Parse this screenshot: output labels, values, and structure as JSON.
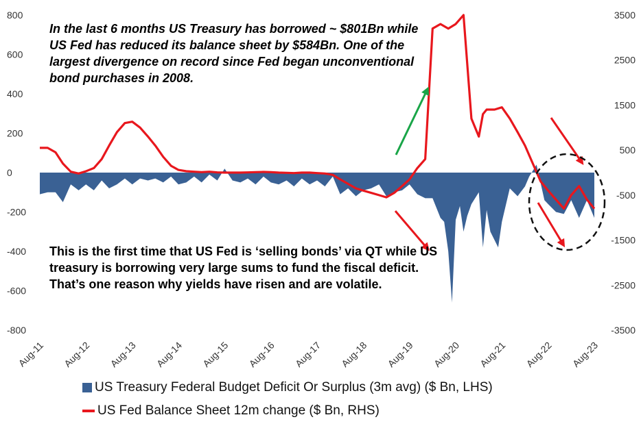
{
  "chart_data": {
    "type": "area+line",
    "annotations": [
      "In the last 6 months US Treasury has borrowed ~ $801Bn while US Fed has reduced its balance sheet by $584Bn. One of the largest divergence on record since Fed began unconventional bond purchases in 2008.",
      "This is the first time that US Fed is ‘selling bonds’ via QT while US treasury is borrowing very large sums to fund the fiscal deficit. That’s one reason why yields have risen and are volatile."
    ],
    "x_ticks": [
      "Aug-11",
      "Aug-12",
      "Aug-13",
      "Aug-14",
      "Aug-15",
      "Aug-16",
      "Aug-17",
      "Aug-18",
      "Aug-19",
      "Aug-20",
      "Aug-21",
      "Aug-22",
      "Aug-23"
    ],
    "x_range": [
      2011.58,
      2023.58
    ],
    "y_left": {
      "ticks": [
        "800",
        "600",
        "400",
        "200",
        "0",
        "-200",
        "-400",
        "-600",
        "-800"
      ],
      "range": [
        -800,
        800
      ]
    },
    "y_right": {
      "ticks": [
        "3500",
        "2500",
        "1500",
        "500",
        "-500",
        "-1500",
        "-2500",
        "-3500"
      ],
      "range": [
        -3500,
        3500
      ]
    },
    "legend": [
      "US Treasury Federal Budget Deficit Or Surplus (3m avg) ($ Bn, LHS)",
      "US Fed Balance Sheet 12m change ($ Bn, RHS)"
    ],
    "series": [
      {
        "name": "US Treasury Federal Budget Deficit Or Surplus (3m avg) ($ Bn, LHS)",
        "axis": "left",
        "color": "#3a6194",
        "x": [
          2011.58,
          2011.75,
          2011.92,
          2012.08,
          2012.25,
          2012.42,
          2012.58,
          2012.75,
          2012.92,
          2013.08,
          2013.25,
          2013.42,
          2013.58,
          2013.75,
          2013.92,
          2014.08,
          2014.25,
          2014.42,
          2014.58,
          2014.75,
          2014.92,
          2015.08,
          2015.25,
          2015.42,
          2015.58,
          2015.75,
          2015.92,
          2016.08,
          2016.25,
          2016.42,
          2016.58,
          2016.75,
          2016.92,
          2017.08,
          2017.25,
          2017.42,
          2017.58,
          2017.75,
          2017.92,
          2018.08,
          2018.25,
          2018.42,
          2018.58,
          2018.75,
          2018.92,
          2019.08,
          2019.25,
          2019.42,
          2019.58,
          2019.75,
          2019.92,
          2020.08,
          2020.25,
          2020.33,
          2020.42,
          2020.5,
          2020.58,
          2020.67,
          2020.75,
          2020.83,
          2020.92,
          2021.08,
          2021.17,
          2021.25,
          2021.33,
          2021.5,
          2021.58,
          2021.75,
          2021.92,
          2022.08,
          2022.17,
          2022.33,
          2022.5,
          2022.58,
          2022.75,
          2022.92,
          2023.08,
          2023.25,
          2023.42,
          2023.58
        ],
        "values": [
          -110,
          -100,
          -100,
          -150,
          -60,
          -90,
          -60,
          -90,
          -40,
          -80,
          -60,
          -30,
          -60,
          -30,
          -40,
          -30,
          -50,
          -20,
          -60,
          -50,
          -20,
          -50,
          -10,
          -40,
          20,
          -40,
          -50,
          -30,
          -60,
          -20,
          -50,
          -60,
          -40,
          -70,
          -30,
          -60,
          -40,
          -70,
          -20,
          -110,
          -80,
          -120,
          -90,
          -80,
          -60,
          -120,
          -100,
          -90,
          -60,
          -110,
          -130,
          -130,
          -230,
          -250,
          -400,
          -660,
          -240,
          -170,
          -300,
          -220,
          -160,
          -100,
          -380,
          -190,
          -300,
          -380,
          -250,
          -80,
          -120,
          -70,
          -20,
          40,
          -140,
          -160,
          -200,
          -210,
          -140,
          -230,
          -140,
          -230
        ]
      },
      {
        "name": "US Fed Balance Sheet 12m change ($ Bn, RHS)",
        "axis": "right",
        "color": "#e8171d",
        "x": [
          2011.58,
          2011.75,
          2011.92,
          2012.08,
          2012.25,
          2012.42,
          2012.58,
          2012.75,
          2012.92,
          2013.08,
          2013.25,
          2013.42,
          2013.58,
          2013.75,
          2013.92,
          2014.08,
          2014.25,
          2014.42,
          2014.58,
          2014.75,
          2014.92,
          2015.08,
          2015.25,
          2015.42,
          2015.58,
          2015.75,
          2015.92,
          2016.08,
          2016.25,
          2016.42,
          2016.58,
          2016.75,
          2016.92,
          2017.08,
          2017.25,
          2017.42,
          2017.58,
          2017.75,
          2017.92,
          2018.08,
          2018.25,
          2018.42,
          2018.58,
          2018.75,
          2018.92,
          2019.08,
          2019.25,
          2019.42,
          2019.58,
          2019.75,
          2019.92,
          2020.08,
          2020.25,
          2020.42,
          2020.58,
          2020.75,
          2020.92,
          2021.08,
          2021.17,
          2021.25,
          2021.42,
          2021.58,
          2021.75,
          2021.92,
          2022.08,
          2022.25,
          2022.42,
          2022.58,
          2022.75,
          2022.92,
          2023.08,
          2023.25,
          2023.42,
          2023.58
        ],
        "values": [
          550,
          550,
          450,
          200,
          20,
          -20,
          30,
          100,
          300,
          600,
          900,
          1100,
          1130,
          1000,
          800,
          600,
          350,
          150,
          60,
          30,
          20,
          10,
          20,
          5,
          0,
          0,
          0,
          5,
          10,
          15,
          10,
          0,
          -5,
          -10,
          0,
          0,
          -10,
          -20,
          -50,
          -150,
          -250,
          -350,
          -400,
          -450,
          -500,
          -550,
          -450,
          -300,
          -150,
          100,
          300,
          3200,
          3300,
          3200,
          3300,
          3500,
          1200,
          800,
          1300,
          1400,
          1400,
          1450,
          1200,
          900,
          600,
          200,
          -200,
          -400,
          -600,
          -800,
          -500,
          -300,
          -600,
          -800
        ]
      }
    ]
  }
}
